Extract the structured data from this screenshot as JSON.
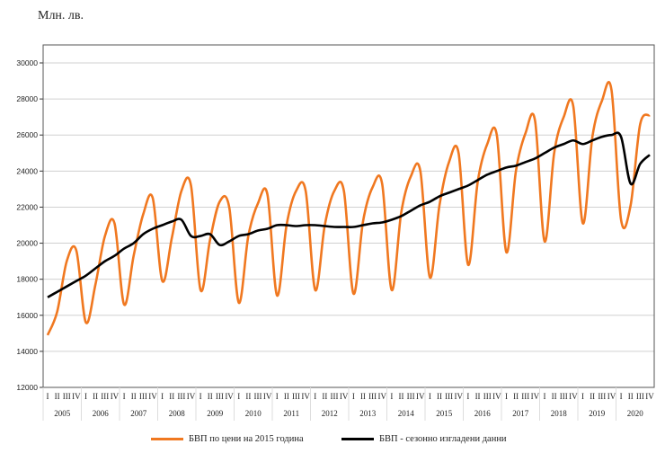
{
  "chart_data": {
    "type": "line",
    "ylabel": "Млн. лв.",
    "ylim": [
      12000,
      30000
    ],
    "yticks": [
      12000,
      14000,
      16000,
      18000,
      20000,
      22000,
      24000,
      26000,
      28000,
      30000
    ],
    "grid": true,
    "legend_position": "bottom",
    "quarter_labels": [
      "I",
      "II",
      "III",
      "IV"
    ],
    "years": [
      "2005",
      "2006",
      "2007",
      "2008",
      "2009",
      "2010",
      "2011",
      "2012",
      "2013",
      "2014",
      "2015",
      "2016",
      "2017",
      "2018",
      "2019",
      "2020"
    ],
    "series": [
      {
        "name": "БВП по цени на 2015 година",
        "color": "#f07820",
        "values": [
          14900,
          16200,
          19000,
          19600,
          15600,
          17700,
          20400,
          21100,
          16600,
          19300,
          21600,
          22500,
          17900,
          20300,
          22900,
          23200,
          17400,
          20200,
          22300,
          22000,
          16700,
          20400,
          22200,
          22700,
          17100,
          21000,
          22900,
          22900,
          17400,
          21000,
          22900,
          22900,
          17200,
          21200,
          23100,
          23300,
          17400,
          21700,
          23700,
          24000,
          18100,
          22100,
          24500,
          25000,
          18800,
          23400,
          25500,
          26000,
          19500,
          24000,
          26100,
          26800,
          20100,
          25000,
          27000,
          27600,
          21100,
          25900,
          27900,
          28500,
          21300,
          22100,
          26600,
          27100
        ]
      },
      {
        "name": "БВП - сезонно изгладени данни",
        "color": "#000000",
        "values": [
          17000,
          17300,
          17600,
          17900,
          18200,
          18600,
          19000,
          19300,
          19700,
          20000,
          20500,
          20800,
          21000,
          21200,
          21300,
          20400,
          20400,
          20500,
          19900,
          20100,
          20400,
          20500,
          20700,
          20800,
          21000,
          21000,
          20950,
          21000,
          21000,
          20950,
          20900,
          20900,
          20900,
          21000,
          21100,
          21150,
          21300,
          21500,
          21800,
          22100,
          22300,
          22600,
          22800,
          23000,
          23200,
          23500,
          23800,
          24000,
          24200,
          24300,
          24500,
          24700,
          25000,
          25300,
          25500,
          25700,
          25500,
          25700,
          25900,
          26000,
          25900,
          23300,
          24400,
          24900
        ]
      }
    ]
  }
}
